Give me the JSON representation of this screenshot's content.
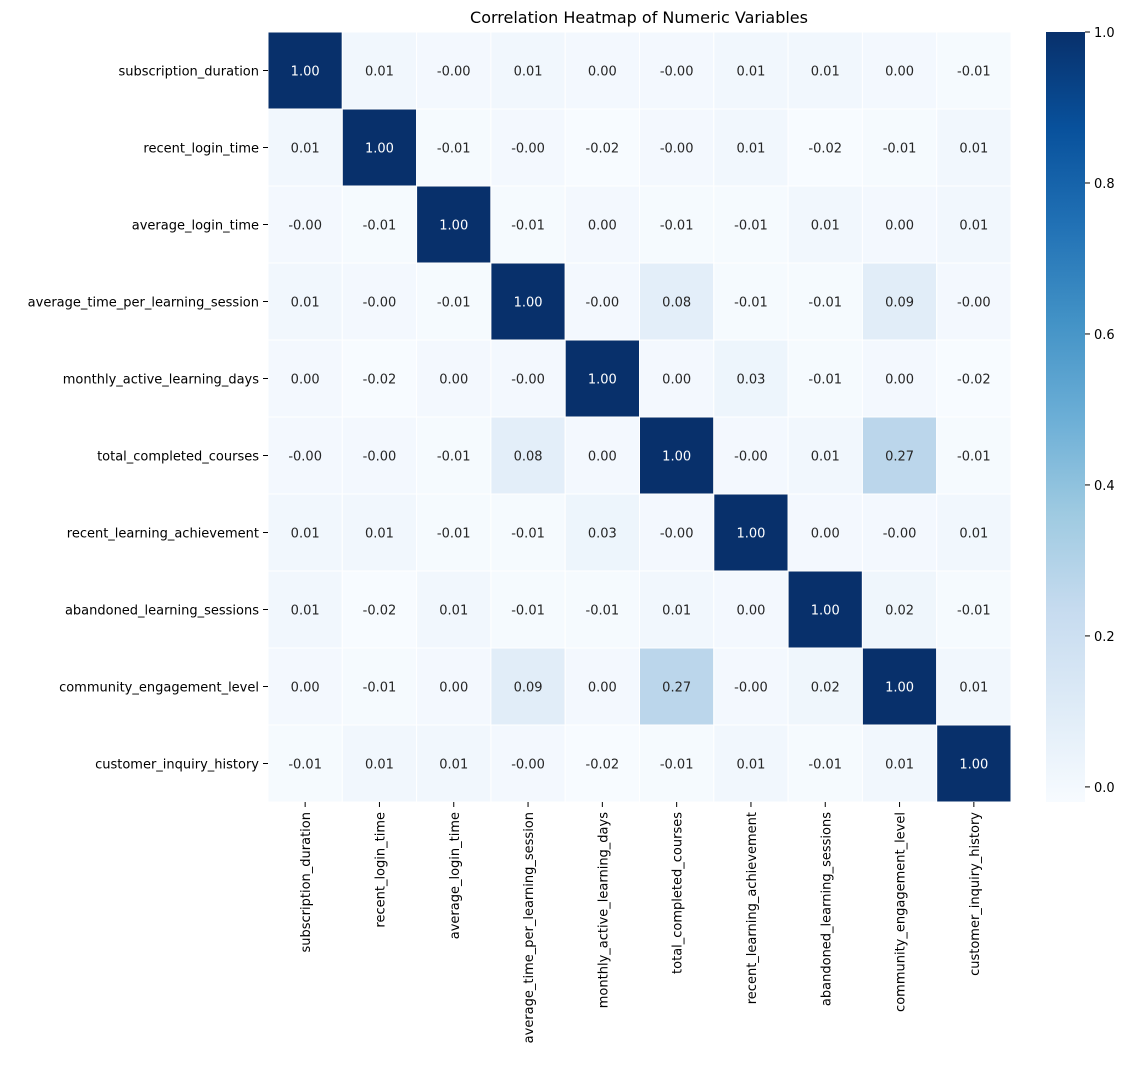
{
  "chart_data": {
    "type": "heatmap",
    "title": "Correlation Heatmap of Numeric Variables",
    "variables": [
      "subscription_duration",
      "recent_login_time",
      "average_login_time",
      "average_time_per_learning_session",
      "monthly_active_learning_days",
      "total_completed_courses",
      "recent_learning_achievement",
      "abandoned_learning_sessions",
      "community_engagement_level",
      "customer_inquiry_history"
    ],
    "matrix": [
      [
        1.0,
        0.01,
        -0.0,
        0.01,
        0.0,
        -0.0,
        0.01,
        0.01,
        0.0,
        -0.01
      ],
      [
        0.01,
        1.0,
        -0.01,
        -0.0,
        -0.02,
        -0.0,
        0.01,
        -0.02,
        -0.01,
        0.01
      ],
      [
        -0.0,
        -0.01,
        1.0,
        -0.01,
        0.0,
        -0.01,
        -0.01,
        0.01,
        0.0,
        0.01
      ],
      [
        0.01,
        -0.0,
        -0.01,
        1.0,
        -0.0,
        0.08,
        -0.01,
        -0.01,
        0.09,
        -0.0
      ],
      [
        0.0,
        -0.02,
        0.0,
        -0.0,
        1.0,
        0.0,
        0.03,
        -0.01,
        0.0,
        -0.02
      ],
      [
        -0.0,
        -0.0,
        -0.01,
        0.08,
        0.0,
        1.0,
        -0.0,
        0.01,
        0.27,
        -0.01
      ],
      [
        0.01,
        0.01,
        -0.01,
        -0.01,
        0.03,
        -0.0,
        1.0,
        0.0,
        -0.0,
        0.01
      ],
      [
        0.01,
        -0.02,
        0.01,
        -0.01,
        -0.01,
        0.01,
        0.0,
        1.0,
        0.02,
        -0.01
      ],
      [
        0.0,
        -0.01,
        0.0,
        0.09,
        0.0,
        0.27,
        -0.0,
        0.02,
        1.0,
        0.01
      ],
      [
        -0.01,
        0.01,
        0.01,
        -0.0,
        -0.02,
        -0.01,
        0.01,
        -0.01,
        0.01,
        1.0
      ]
    ],
    "colormap": "Blues",
    "colorbar": {
      "vmin": -0.02,
      "vmax": 1.0,
      "ticks": [
        0.0,
        0.2,
        0.4,
        0.6,
        0.8,
        1.0
      ],
      "tick_labels": [
        "0.0",
        "0.2",
        "0.4",
        "0.6",
        "0.8",
        "1.0"
      ]
    },
    "annotation_format": "2 decimals",
    "colors": {
      "light_text": "#ffffff",
      "dark_text": "#262626",
      "grid_line": "#ffffff"
    }
  }
}
